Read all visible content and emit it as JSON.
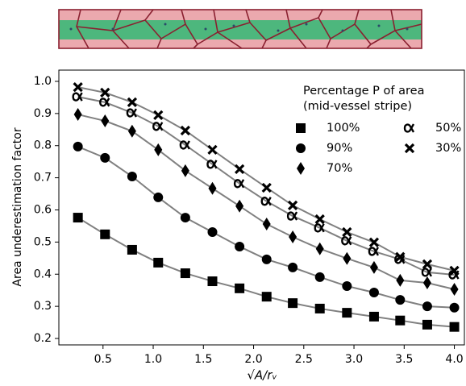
{
  "chart_data": {
    "type": "line",
    "xlabel": "√A/rᵥ",
    "ylabel": "Area underestimation factor",
    "legend_title": [
      "Percentage P of area",
      "(mid-vessel stripe)"
    ],
    "x": [
      0.25,
      0.52,
      0.79,
      1.05,
      1.32,
      1.59,
      1.86,
      2.13,
      2.39,
      2.66,
      2.93,
      3.2,
      3.46,
      3.73,
      4.0
    ],
    "series": [
      {
        "name": "100%",
        "marker": "square",
        "color": "#000000",
        "values": [
          0.576,
          0.524,
          0.476,
          0.436,
          0.403,
          0.378,
          0.356,
          0.33,
          0.31,
          0.293,
          0.28,
          0.268,
          0.256,
          0.243,
          0.236
        ]
      },
      {
        "name": "90%",
        "marker": "circle",
        "color": "#000000",
        "values": [
          0.797,
          0.762,
          0.704,
          0.639,
          0.576,
          0.531,
          0.486,
          0.446,
          0.421,
          0.391,
          0.363,
          0.343,
          0.32,
          0.3,
          0.296
        ]
      },
      {
        "name": "70%",
        "marker": "diamond",
        "color": "#000000",
        "values": [
          0.897,
          0.877,
          0.845,
          0.787,
          0.722,
          0.667,
          0.612,
          0.556,
          0.516,
          0.479,
          0.449,
          0.421,
          0.381,
          0.373,
          0.353
        ]
      },
      {
        "name": "50%",
        "marker": "alpha",
        "color": "#000000",
        "values": [
          0.952,
          0.935,
          0.902,
          0.86,
          0.802,
          0.742,
          0.682,
          0.627,
          0.581,
          0.544,
          0.504,
          0.471,
          0.446,
          0.406,
          0.398
        ]
      },
      {
        "name": "30%",
        "marker": "x",
        "color": "#000000",
        "values": [
          0.982,
          0.965,
          0.935,
          0.895,
          0.847,
          0.787,
          0.727,
          0.669,
          0.614,
          0.571,
          0.531,
          0.499,
          0.454,
          0.431,
          0.411
        ]
      }
    ],
    "fit_color": "#808080",
    "xlim": [
      0.06,
      4.1
    ],
    "ylim": [
      0.18,
      1.035
    ],
    "xticks": [
      0.5,
      {
        "value": 1,
        "label": "1.0"
      },
      1.5,
      {
        "value": 2,
        "label": "2.0"
      },
      2.5,
      {
        "value": 3,
        "label": "3.0"
      },
      3.5,
      {
        "value": 4,
        "label": "4.0"
      }
    ],
    "yticks": [
      0.2,
      0.3,
      0.4,
      0.5,
      0.6,
      0.7,
      0.8,
      0.9,
      {
        "value": 1,
        "label": "1.0"
      }
    ]
  }
}
